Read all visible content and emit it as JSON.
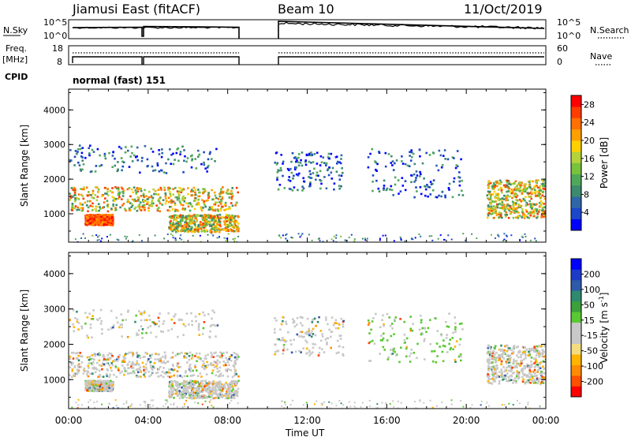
{
  "header": {
    "station": "Jiamusi East (fitACF)",
    "beam": "Beam 10",
    "date": "11/Oct/2019"
  },
  "status_panels": {
    "nsky_label": "N.Sky",
    "nsky_ticks": [
      "10^5",
      "10^0"
    ],
    "nsearch_label": "N.Search",
    "nsearch_ticks": [
      "10^5",
      "10^0"
    ],
    "freq_label": "Freq.",
    "freq_unit": "[MHz]",
    "freq_ticks": [
      "18",
      "8"
    ],
    "nave_label": "Nave",
    "nave_ticks": [
      "60",
      "0"
    ],
    "cpid_label": "CPID",
    "cpid_text": "normal (fast) 151"
  },
  "time_axis": {
    "label": "Time UT",
    "ticks": [
      "00:00",
      "04:00",
      "08:00",
      "12:00",
      "16:00",
      "20:00",
      "00:00"
    ]
  },
  "chart_data": [
    {
      "type": "heatmap",
      "title": "",
      "xlabel": "Time UT",
      "ylabel": "Slant Range [km]",
      "yticks": [
        "1000",
        "2000",
        "3000",
        "4000"
      ],
      "ylim": [
        180,
        4600
      ],
      "xlim_hours": [
        0,
        24
      ],
      "data_gap_hours": [
        8.5,
        10.5
      ],
      "colorbar": {
        "label": "Power [dB]",
        "ticks": [
          "4",
          "8",
          "12",
          "16",
          "20",
          "24",
          "28"
        ],
        "range": [
          0,
          30
        ],
        "colors": [
          "#0000ff",
          "#1c47c8",
          "#2f66a8",
          "#3d8a6e",
          "#4fa85a",
          "#78c23c",
          "#b4d23a",
          "#ffd000",
          "#ffa000",
          "#ff7000",
          "#ff3c00",
          "#ff0000"
        ]
      },
      "echo_regions": [
        {
          "t0": 0.0,
          "t1": 8.5,
          "r0": 1100,
          "r1": 1800,
          "level": "strong"
        },
        {
          "t0": 0.8,
          "t1": 2.2,
          "r0": 700,
          "r1": 1000,
          "level": "very-strong"
        },
        {
          "t0": 5.0,
          "t1": 8.5,
          "r0": 500,
          "r1": 1000,
          "level": "strong"
        },
        {
          "t0": 0.0,
          "t1": 7.5,
          "r0": 2200,
          "r1": 3000,
          "level": "weak"
        },
        {
          "t0": 10.3,
          "t1": 13.8,
          "r0": 1700,
          "r1": 2800,
          "level": "weak"
        },
        {
          "t0": 15.0,
          "t1": 19.8,
          "r0": 1500,
          "r1": 2900,
          "level": "weak"
        },
        {
          "t0": 21.0,
          "t1": 24.0,
          "r0": 900,
          "r1": 2000,
          "level": "strong"
        }
      ]
    },
    {
      "type": "heatmap",
      "title": "",
      "xlabel": "Time UT",
      "ylabel": "Slant Range [km]",
      "yticks": [
        "1000",
        "2000",
        "3000",
        "4000"
      ],
      "ylim": [
        180,
        4600
      ],
      "xlim_hours": [
        0,
        24
      ],
      "data_gap_hours": [
        8.5,
        10.5
      ],
      "colorbar": {
        "label": "Velocity [m s",
        "label_sup": "-1",
        "label_end": "]",
        "ticks": [
          "-200",
          "-100",
          "-50",
          "-15",
          "15",
          "50",
          "100",
          "200"
        ],
        "colors": [
          "#ff0000",
          "#ff5000",
          "#ff8c00",
          "#ffb400",
          "#f4dc80",
          "#c8c8c8",
          "#c8c8c8",
          "#5ac832",
          "#3ca03c",
          "#2e8a6e",
          "#2f5aa8",
          "#1c3cc8",
          "#0000ff"
        ]
      }
    }
  ]
}
